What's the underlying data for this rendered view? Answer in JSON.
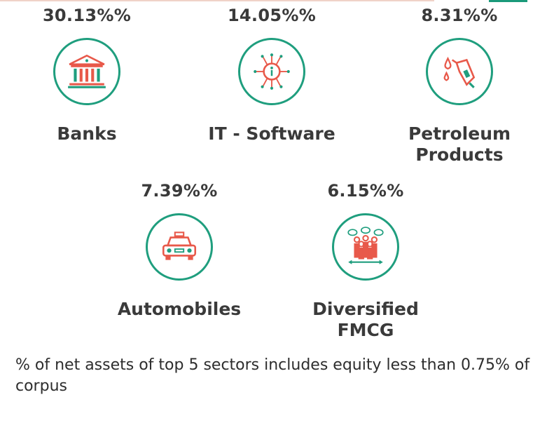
{
  "sectors": [
    {
      "percent": "30.13%%",
      "label": "Banks",
      "icon": "bank-icon"
    },
    {
      "percent": "14.05%%",
      "label": "IT - Software",
      "icon": "chip-icon"
    },
    {
      "percent": "8.31%%",
      "label": "Petroleum Products",
      "icon": "fuel-nozzle-icon"
    },
    {
      "percent": "7.39%%",
      "label": "Automobiles",
      "icon": "car-icon"
    },
    {
      "percent": "6.15%%",
      "label": "Diversified FMCG",
      "icon": "consumer-group-icon"
    }
  ],
  "footnote": "% of net assets of top 5 sectors includes equity less than 0.75% of corpus",
  "colors": {
    "accent_green": "#1f9e7e",
    "icon_red": "#e8594a",
    "text": "#3a3a3a"
  }
}
